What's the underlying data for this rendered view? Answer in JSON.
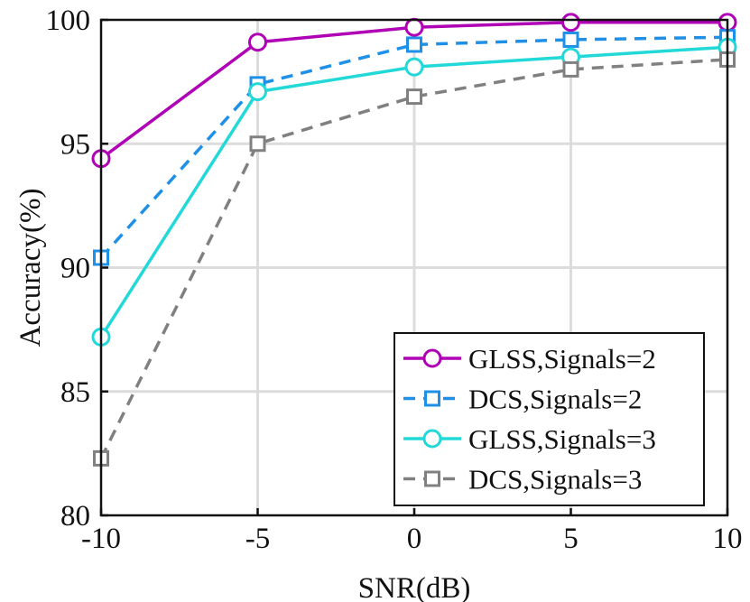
{
  "chart_data": {
    "type": "line",
    "title": "",
    "xlabel": "SNR(dB)",
    "ylabel": "Accuracy(%)",
    "x": [
      -10,
      -5,
      0,
      5,
      10
    ],
    "xlim": [
      -10,
      10
    ],
    "ylim": [
      80,
      100
    ],
    "xticks": [
      -10,
      -5,
      0,
      5,
      10
    ],
    "yticks": [
      80,
      85,
      90,
      95,
      100
    ],
    "grid": true,
    "legend_position": "bottom-right",
    "series": [
      {
        "name": "GLSS,Signals=2",
        "color": "#b000b5",
        "dash": "solid",
        "marker": "circle",
        "values": [
          94.4,
          99.1,
          99.7,
          99.9,
          99.9
        ]
      },
      {
        "name": "DCS,Signals=2",
        "color": "#1e90e8",
        "dash": "dashed",
        "marker": "square",
        "values": [
          90.4,
          97.4,
          99.0,
          99.2,
          99.3
        ]
      },
      {
        "name": "GLSS,Signals=3",
        "color": "#22d8d8",
        "dash": "solid",
        "marker": "circle",
        "values": [
          87.2,
          97.1,
          98.1,
          98.5,
          98.9
        ]
      },
      {
        "name": "DCS,Signals=3",
        "color": "#808080",
        "dash": "dashed",
        "marker": "square",
        "values": [
          82.3,
          95.0,
          96.9,
          98.0,
          98.4
        ]
      }
    ]
  }
}
